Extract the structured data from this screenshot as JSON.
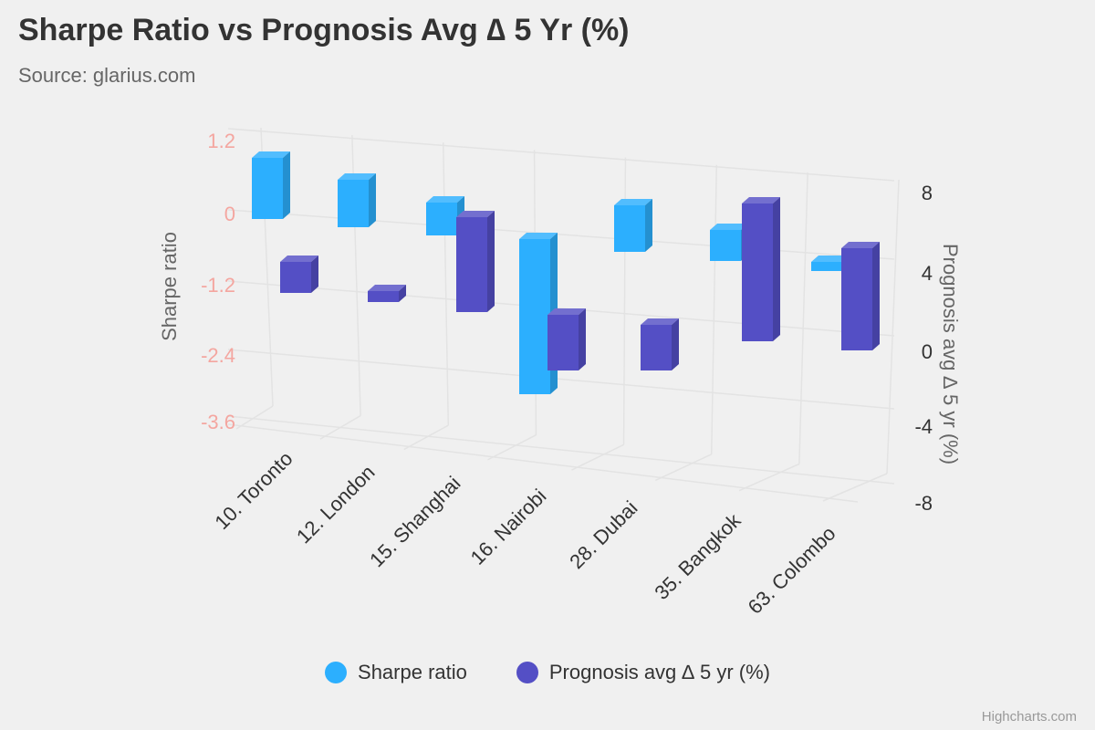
{
  "title": "Sharpe Ratio vs Prognosis Avg ∆ 5 Yr (%)",
  "subtitle": "Source: glarius.com",
  "credits": "Highcharts.com",
  "colors": {
    "sharpe": "#2caffe",
    "prognosis": "#544fc5",
    "left_axis_labels": "#f4a6a0",
    "grid": "#e3e3e3"
  },
  "chart_data": {
    "type": "bar",
    "categories": [
      "10. Toronto",
      "12. London",
      "15. Shanghai",
      "16. Nairobi",
      "28. Dubai",
      "35. Bangkok",
      "63. Colombo"
    ],
    "series": [
      {
        "name": "Sharpe ratio",
        "axis": "left",
        "values": [
          1.0,
          0.65,
          0.35,
          -2.75,
          0.6,
          0.05,
          -0.95
        ]
      },
      {
        "name": "Prognosis avg ∆ 5 yr (%)",
        "axis": "right",
        "values": [
          3.0,
          2.5,
          2.0,
          -1.0,
          -1.0,
          0.5,
          0.0
        ],
        "base": 0
      }
    ],
    "y_left": {
      "label": "Sharpe ratio",
      "ticks": [
        "1.2",
        "0",
        "-1.2",
        "-2.4",
        "-3.6"
      ],
      "range": [
        -3.6,
        1.2
      ]
    },
    "y_right": {
      "label": "Prognosis avg ∆ 5 yr (%)",
      "ticks": [
        "8",
        "4",
        "0",
        "-4",
        "-8"
      ],
      "range": [
        -8,
        8
      ]
    },
    "grid": true,
    "legend": "bottom-center",
    "style": "3d-column"
  },
  "legend": {
    "items": [
      {
        "label": "Sharpe ratio"
      },
      {
        "label": "Prognosis avg ∆ 5 yr (%)"
      }
    ]
  }
}
